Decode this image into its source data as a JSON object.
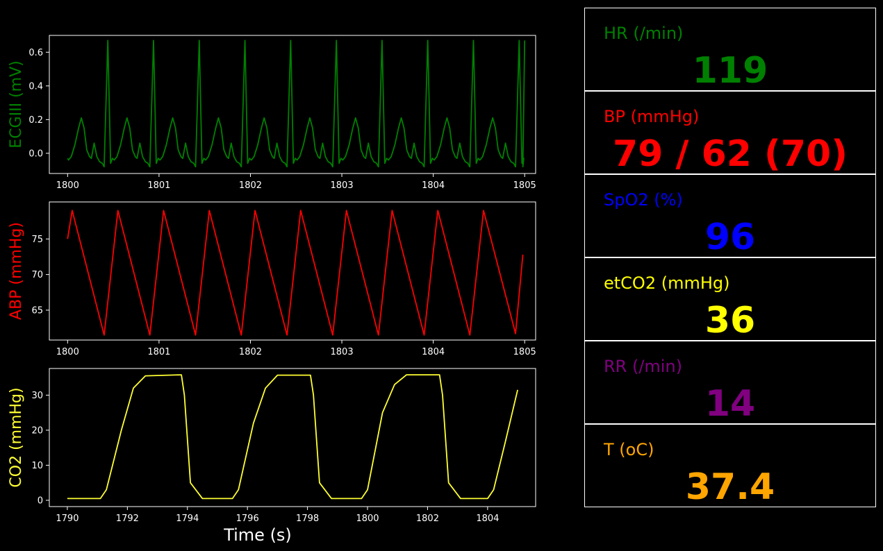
{
  "chart_data": [
    {
      "type": "line",
      "ylabel": "ECGIII (mV)",
      "color": "#008000",
      "xlim": [
        1799.8,
        1805.12
      ],
      "ylim": [
        -0.12,
        0.7
      ],
      "xticks": [
        1800,
        1801,
        1802,
        1803,
        1804,
        1805
      ],
      "yticks": [
        0.0,
        0.2,
        0.4,
        0.6
      ],
      "ytick_labels": [
        "0.0",
        "0.2",
        "0.4",
        "0.6"
      ],
      "beat_times": [
        1800.0,
        1800.5,
        1801.0,
        1801.5,
        1802.0,
        1802.5,
        1803.0,
        1803.5,
        1804.0,
        1804.5,
        1805.0
      ],
      "peak": 0.67,
      "t_wave": 0.21,
      "p_wave": 0.06,
      "trough": -0.08
    },
    {
      "type": "line",
      "ylabel": "ABP (mmHg)",
      "color": "#ff0000",
      "xlim": [
        1799.8,
        1805.12
      ],
      "ylim": [
        60.8,
        80.2
      ],
      "xticks": [
        1800,
        1801,
        1802,
        1803,
        1804,
        1805
      ],
      "yticks": [
        65,
        70,
        75
      ],
      "ytick_labels": [
        "65",
        "70",
        "75"
      ],
      "x": [
        1800.0,
        1800.05,
        1800.4,
        1800.55,
        1800.9,
        1801.05,
        1801.4,
        1801.55,
        1801.9,
        1802.05,
        1802.4,
        1802.55,
        1802.9,
        1803.05,
        1803.4,
        1803.55,
        1803.9,
        1804.05,
        1804.4,
        1804.55,
        1804.9,
        1804.98
      ],
      "y": [
        75.0,
        79.0,
        61.5,
        79.0,
        61.5,
        79.0,
        61.5,
        79.0,
        61.5,
        79.0,
        61.5,
        79.0,
        61.5,
        79.0,
        61.5,
        79.0,
        61.5,
        79.0,
        61.5,
        79.0,
        61.7,
        72.8
      ]
    },
    {
      "type": "line",
      "ylabel": "CO2 (mmHg)",
      "xlabel": "Time (s)",
      "color": "#ffff33",
      "xlim": [
        1789.4,
        1805.6
      ],
      "ylim": [
        -1.8,
        37.6
      ],
      "xticks": [
        1790,
        1792,
        1794,
        1796,
        1798,
        1800,
        1802,
        1804
      ],
      "yticks": [
        0,
        10,
        20,
        30
      ],
      "ytick_labels": [
        "0",
        "10",
        "20",
        "30"
      ],
      "x": [
        1790.0,
        1791.1,
        1791.3,
        1791.8,
        1792.2,
        1792.6,
        1793.8,
        1793.9,
        1794.1,
        1794.5,
        1795.5,
        1795.7,
        1796.2,
        1796.6,
        1797.0,
        1798.1,
        1798.2,
        1798.4,
        1798.8,
        1799.8,
        1800.0,
        1800.5,
        1800.9,
        1801.3,
        1802.4,
        1802.5,
        1802.7,
        1803.1,
        1804.0,
        1804.2,
        1804.6,
        1805.0
      ],
      "y": [
        0.5,
        0.5,
        3.0,
        20.0,
        32.0,
        35.5,
        35.8,
        30.0,
        5.0,
        0.5,
        0.5,
        3.0,
        22.0,
        32.0,
        35.7,
        35.7,
        30.0,
        5.0,
        0.5,
        0.5,
        3.0,
        25.0,
        33.0,
        35.8,
        35.8,
        30.0,
        5.0,
        0.5,
        0.5,
        3.0,
        17.0,
        31.5
      ]
    }
  ],
  "vitals": [
    {
      "key": "hr",
      "label": "HR (/min)",
      "value": "119",
      "color": "#008000"
    },
    {
      "key": "bp",
      "label": "BP  (mmHg)",
      "value": "79 / 62 (70)",
      "color": "#ff0000"
    },
    {
      "key": "spo2",
      "label": "SpO2 (%)",
      "value": "96",
      "color": "#0000ff"
    },
    {
      "key": "etco2",
      "label": "etCO2 (mmHg)",
      "value": "36",
      "color": "#ffff00"
    },
    {
      "key": "rr",
      "label": "RR (/min)",
      "value": "14",
      "color": "#800080"
    },
    {
      "key": "temp",
      "label": "T (oC)",
      "value": "37.4",
      "color": "#ffa500"
    }
  ]
}
